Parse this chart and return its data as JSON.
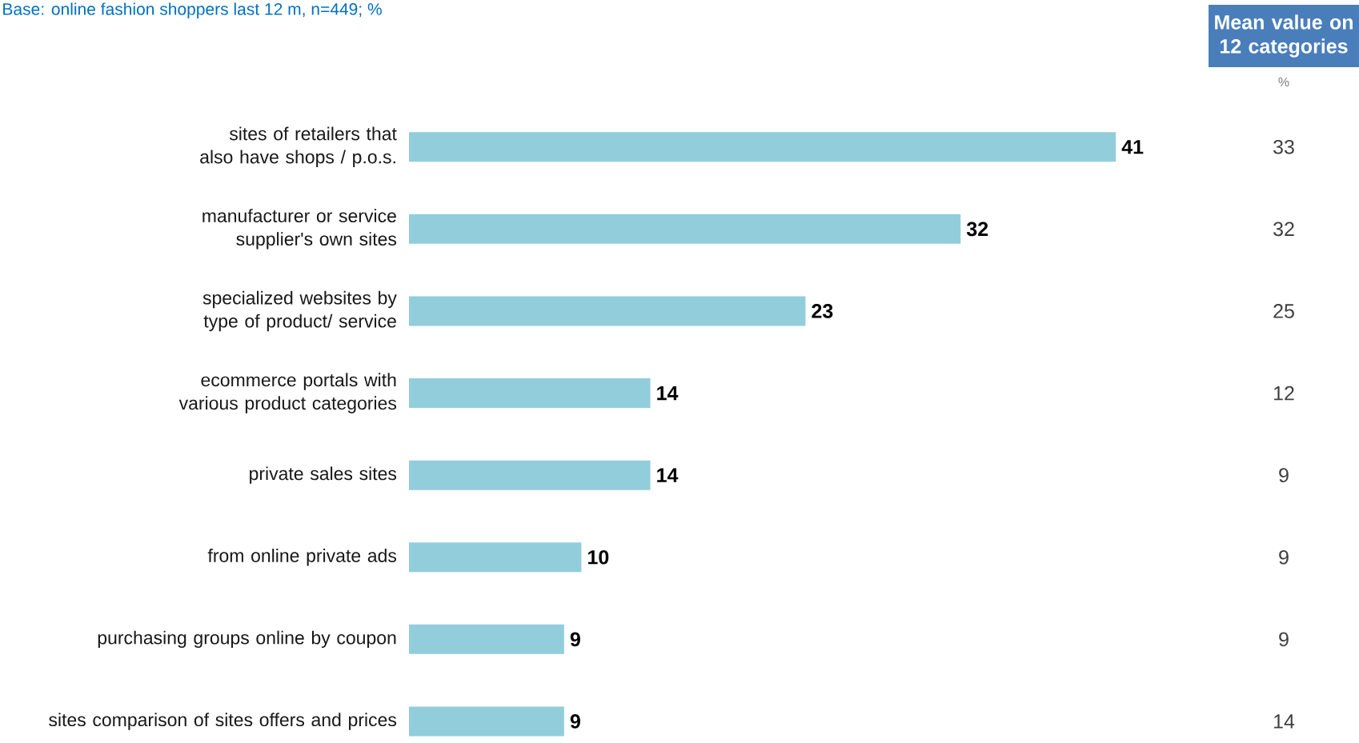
{
  "chart_data": [
    {
      "type": "bar",
      "orientation": "horizontal",
      "title": "Base: online fashion shoppers last 12 m, n=449; %",
      "categories": [
        "sites of retailers that also have shops / p.o.s.",
        "manufacturer or service supplier's own sites",
        "specialized websites by type of product/ service",
        "ecommerce portals with various product categories",
        "private sales sites",
        "from online private ads",
        "purchasing groups online by coupon",
        "sites comparison of sites offers and prices"
      ],
      "values": [
        41,
        32,
        23,
        14,
        14,
        10,
        9,
        9
      ],
      "color": "#92cddc",
      "data_labels": true
    },
    {
      "type": "other",
      "title": "Mean value on 12 categories",
      "subtitle": "%",
      "values": [
        33,
        32,
        25,
        12,
        9,
        9,
        9,
        14
      ],
      "data_labels": true
    }
  ]
}
